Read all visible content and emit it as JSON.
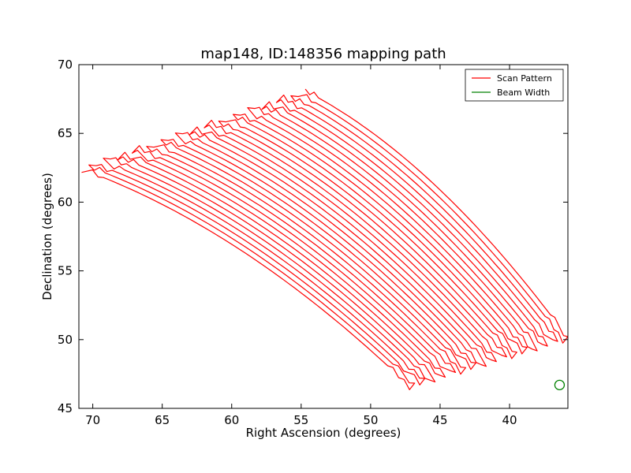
{
  "chart_data": {
    "type": "line",
    "title": "map148, ID:148356 mapping path",
    "xlabel": "Right Ascension (degrees)",
    "ylabel": "Declination (degrees)",
    "xlim": [
      71,
      35.8
    ],
    "ylim": [
      45,
      70
    ],
    "x_inverted": true,
    "xticks": [
      70,
      65,
      60,
      55,
      50,
      45,
      40
    ],
    "yticks": [
      45,
      50,
      55,
      60,
      65,
      70
    ],
    "grid": false,
    "legend_position": "top-right",
    "series": [
      {
        "name": "Scan Pattern",
        "color": "#ff0000",
        "kind": "raster-scan",
        "n_legs": 32,
        "first_leg_start": [
          70.8,
          62.4
        ],
        "first_leg_end": [
          47.2,
          46.6
        ],
        "last_leg_start": [
          54.7,
          68.1
        ],
        "last_leg_end": [
          35.8,
          50.1
        ]
      },
      {
        "name": "Beam Width",
        "color": "#008000",
        "kind": "marker-circle",
        "points": [
          [
            36.4,
            46.7
          ]
        ]
      }
    ]
  }
}
